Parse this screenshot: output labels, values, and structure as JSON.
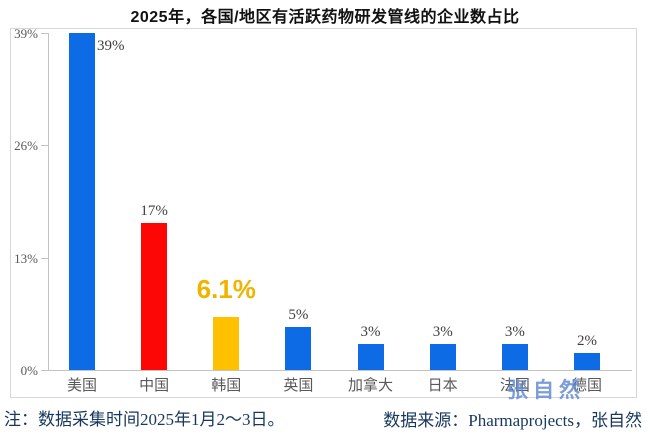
{
  "title": "2025年，各国/地区有活跃药物研发管线的企业数占比",
  "chart_data": {
    "type": "bar",
    "title": "2025年，各国/地区有活跃药物研发管线的企业数占比",
    "categories": [
      "美国",
      "中国",
      "韩国",
      "英国",
      "加拿大",
      "日本",
      "法国",
      "德国"
    ],
    "values": [
      39,
      17,
      6.1,
      5,
      3,
      3,
      3,
      2
    ],
    "value_labels": [
      "39%",
      "17%",
      "6.1%",
      "5%",
      "3%",
      "3%",
      "3%",
      "2%"
    ],
    "bar_colors": [
      "#0d6ce5",
      "#fd0606",
      "#ffc000",
      "#0d6ce5",
      "#0d6ce5",
      "#0d6ce5",
      "#0d6ce5",
      "#0d6ce5"
    ],
    "highlight_index": 2,
    "highlight_label_color": "#f0b400",
    "xlabel": "",
    "ylabel": "",
    "y_ticks": [
      "0%",
      "13%",
      "26%",
      "39%"
    ],
    "ylim": [
      0,
      39
    ],
    "grid": false,
    "legend": null
  },
  "footer": {
    "note_left": "注：数据采集时间2025年1月2～3日。",
    "note_right": "数据来源：Pharmaprojects，张自然"
  },
  "watermark": "张自然",
  "colors": {
    "bar_blue": "#0d6ce5",
    "bar_red": "#fd0606",
    "bar_gold": "#ffc000",
    "note_text": "#17375e",
    "axis_gray": "#c3c3c3",
    "label_gray": "#595959"
  }
}
